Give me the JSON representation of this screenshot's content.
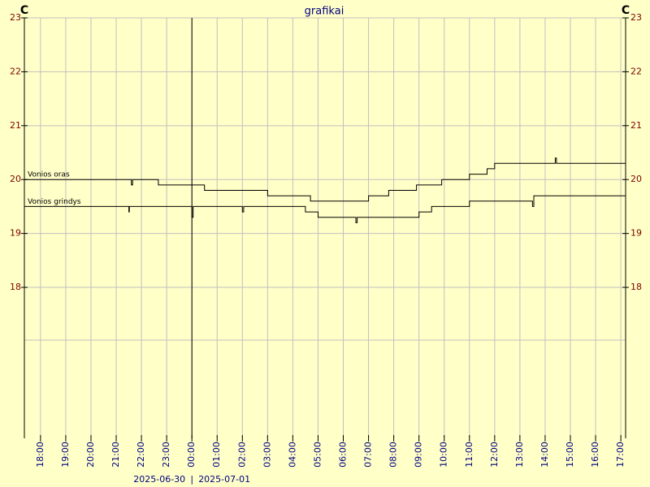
{
  "chart_data": {
    "type": "line",
    "title": "grafikai",
    "ylabel": "C",
    "xlim": [
      17.36,
      41.19
    ],
    "ylim": [
      15.2,
      23
    ],
    "yticks": [
      18,
      19,
      20,
      21,
      22,
      23
    ],
    "xticks": [
      {
        "value": 18,
        "label": "18:00"
      },
      {
        "value": 19,
        "label": "19:00"
      },
      {
        "value": 20,
        "label": "20:00"
      },
      {
        "value": 21,
        "label": "21:00"
      },
      {
        "value": 22,
        "label": "22:00"
      },
      {
        "value": 23,
        "label": "23:00"
      },
      {
        "value": 24,
        "label": "00:00"
      },
      {
        "value": 25,
        "label": "01:00"
      },
      {
        "value": 26,
        "label": "02:00"
      },
      {
        "value": 27,
        "label": "03:00"
      },
      {
        "value": 28,
        "label": "04:00"
      },
      {
        "value": 29,
        "label": "05:00"
      },
      {
        "value": 30,
        "label": "06:00"
      },
      {
        "value": 31,
        "label": "07:00"
      },
      {
        "value": 32,
        "label": "08:00"
      },
      {
        "value": 33,
        "label": "09:00"
      },
      {
        "value": 34,
        "label": "10:00"
      },
      {
        "value": 35,
        "label": "11:00"
      },
      {
        "value": 36,
        "label": "12:00"
      },
      {
        "value": 37,
        "label": "13:00"
      },
      {
        "value": 38,
        "label": "14:00"
      },
      {
        "value": 39,
        "label": "15:00"
      },
      {
        "value": 40,
        "label": "16:00"
      },
      {
        "value": 41,
        "label": "17:00"
      }
    ],
    "day_break": 24,
    "dates": [
      "2025-06-30",
      "|",
      "2025-07-01"
    ],
    "grid": true,
    "series": [
      {
        "name": "Vonios oras",
        "color": "#000000",
        "x": [
          17.36,
          21.6,
          21.6,
          21.65,
          21.65,
          22.67,
          22.67,
          24.5,
          24.5,
          27.0,
          27.0,
          28.7,
          28.7,
          31.0,
          31.0,
          31.8,
          31.8,
          32.9,
          32.9,
          33.9,
          33.9,
          35.0,
          35.0,
          35.7,
          35.7,
          36.0,
          36.0,
          38.4,
          38.4,
          38.45,
          38.45,
          41.19
        ],
        "values": [
          20.0,
          20.0,
          19.9,
          19.9,
          20.0,
          20.0,
          19.9,
          19.9,
          19.8,
          19.8,
          19.7,
          19.7,
          19.6,
          19.6,
          19.7,
          19.7,
          19.8,
          19.8,
          19.9,
          19.9,
          20.0,
          20.0,
          20.1,
          20.1,
          20.2,
          20.2,
          20.3,
          20.3,
          20.4,
          20.4,
          20.3,
          20.3
        ]
      },
      {
        "name": "Vonios grindys",
        "color": "#000000",
        "x": [
          17.36,
          21.5,
          21.5,
          21.52,
          21.52,
          24.0,
          24.0,
          24.05,
          24.05,
          26.0,
          26.0,
          26.05,
          26.05,
          28.5,
          28.5,
          29.0,
          29.0,
          30.5,
          30.5,
          30.55,
          30.55,
          33.0,
          33.0,
          33.5,
          33.5,
          35.0,
          35.0,
          37.5,
          37.5,
          37.55,
          37.55,
          41.19
        ],
        "values": [
          19.5,
          19.5,
          19.4,
          19.4,
          19.5,
          19.5,
          19.3,
          19.3,
          19.5,
          19.5,
          19.4,
          19.4,
          19.5,
          19.5,
          19.4,
          19.4,
          19.3,
          19.3,
          19.2,
          19.2,
          19.3,
          19.3,
          19.4,
          19.4,
          19.5,
          19.5,
          19.6,
          19.6,
          19.5,
          19.5,
          19.7,
          19.7
        ]
      }
    ]
  }
}
